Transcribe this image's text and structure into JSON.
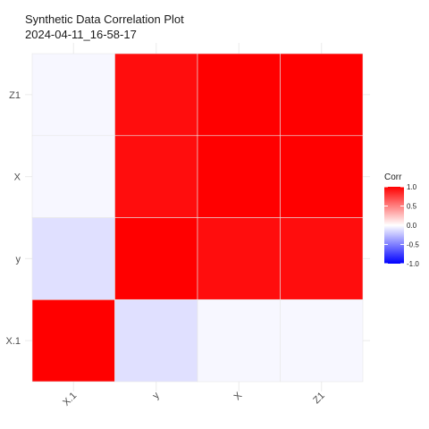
{
  "chart_data": {
    "type": "heatmap",
    "title": "Synthetic Data Correlation Plot",
    "subtitle": "2024-04-11_16-58-17",
    "x_categories": [
      "X.1",
      "y",
      "X",
      "Z1"
    ],
    "y_categories": [
      "X.1",
      "y",
      "X",
      "Z1"
    ],
    "values": [
      [
        1.0,
        -0.12,
        -0.03,
        -0.03
      ],
      [
        -0.12,
        1.0,
        0.95,
        0.95
      ],
      [
        -0.03,
        0.95,
        1.0,
        1.0
      ],
      [
        -0.03,
        0.95,
        1.0,
        1.0
      ]
    ],
    "legend": {
      "title": "Corr",
      "ticks": [
        {
          "value": 1.0,
          "label": "1.0"
        },
        {
          "value": 0.5,
          "label": "0.5"
        },
        {
          "value": 0.0,
          "label": "0.0"
        },
        {
          "value": -0.5,
          "label": "-0.5"
        },
        {
          "value": -1.0,
          "label": "-1.0"
        }
      ],
      "placement": "right"
    },
    "color_scale": {
      "low": "#0000ff",
      "mid": "#ffffff",
      "high": "#ff0000",
      "limits": [
        -1,
        1
      ]
    },
    "grid": true
  }
}
